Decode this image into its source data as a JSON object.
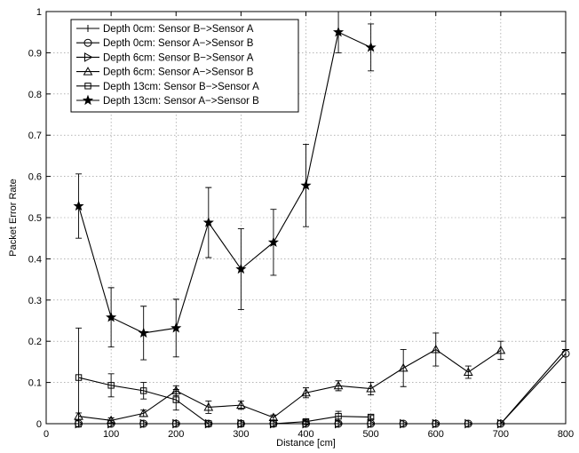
{
  "chart_data": {
    "type": "line",
    "title": "",
    "xlabel": "Distance [cm]",
    "ylabel": "Packet Error Rate",
    "xlim": [
      0,
      800
    ],
    "ylim": [
      0,
      1
    ],
    "x_ticks": [
      0,
      100,
      200,
      300,
      400,
      500,
      600,
      700,
      800
    ],
    "y_ticks": [
      0,
      0.1,
      0.2,
      0.3,
      0.4,
      0.5,
      0.6,
      0.7,
      0.8,
      0.9,
      1
    ],
    "grid": true,
    "legend_position": "top-left",
    "series": [
      {
        "name": "Depth 0cm: Sensor B−>Sensor A",
        "marker": "plus",
        "points": [
          {
            "x": 50,
            "y": 0.0
          },
          {
            "x": 100,
            "y": 0.0
          },
          {
            "x": 150,
            "y": 0.0
          },
          {
            "x": 200,
            "y": 0.0
          },
          {
            "x": 250,
            "y": 0.0
          },
          {
            "x": 300,
            "y": 0.0
          },
          {
            "x": 350,
            "y": 0.0
          },
          {
            "x": 400,
            "y": 0.0
          },
          {
            "x": 450,
            "y": 0.0
          },
          {
            "x": 500,
            "y": 0.0
          },
          {
            "x": 550,
            "y": 0.0
          },
          {
            "x": 600,
            "y": 0.0
          },
          {
            "x": 650,
            "y": 0.0
          },
          {
            "x": 700,
            "y": 0.0
          },
          {
            "x": 800,
            "y": 0.18
          }
        ]
      },
      {
        "name": "Depth 0cm: Sensor A−>Sensor B",
        "marker": "circle",
        "points": [
          {
            "x": 50,
            "y": 0.0
          },
          {
            "x": 100,
            "y": 0.0
          },
          {
            "x": 150,
            "y": 0.0
          },
          {
            "x": 200,
            "y": 0.0
          },
          {
            "x": 250,
            "y": 0.0
          },
          {
            "x": 300,
            "y": 0.0
          },
          {
            "x": 350,
            "y": 0.0
          },
          {
            "x": 400,
            "y": 0.0
          },
          {
            "x": 450,
            "y": 0.0
          },
          {
            "x": 500,
            "y": 0.0
          },
          {
            "x": 550,
            "y": 0.0
          },
          {
            "x": 600,
            "y": 0.0
          },
          {
            "x": 650,
            "y": 0.0
          },
          {
            "x": 700,
            "y": 0.0
          },
          {
            "x": 800,
            "y": 0.17
          }
        ]
      },
      {
        "name": "Depth 6cm: Sensor B−>Sensor A",
        "marker": "triangle-right",
        "points": [
          {
            "x": 50,
            "y": 0.0
          },
          {
            "x": 100,
            "y": 0.0
          },
          {
            "x": 150,
            "y": 0.0
          },
          {
            "x": 200,
            "y": 0.0
          },
          {
            "x": 250,
            "y": 0.0
          },
          {
            "x": 300,
            "y": 0.0
          },
          {
            "x": 350,
            "y": 0.0
          },
          {
            "x": 400,
            "y": 0.0
          },
          {
            "x": 450,
            "y": 0.0
          },
          {
            "x": 500,
            "y": 0.0
          },
          {
            "x": 550,
            "y": 0.0
          },
          {
            "x": 600,
            "y": 0.0
          },
          {
            "x": 650,
            "y": 0.0
          },
          {
            "x": 700,
            "y": 0.0
          }
        ]
      },
      {
        "name": "Depth 6cm: Sensor A−>Sensor B",
        "marker": "triangle-up",
        "points": [
          {
            "x": 50,
            "y": 0.018,
            "err": 0.008
          },
          {
            "x": 100,
            "y": 0.008,
            "err": 0.006
          },
          {
            "x": 150,
            "y": 0.025,
            "err": 0.008
          },
          {
            "x": 200,
            "y": 0.08,
            "err": 0.012
          },
          {
            "x": 250,
            "y": 0.04,
            "err": 0.015
          },
          {
            "x": 300,
            "y": 0.045,
            "err": 0.01
          },
          {
            "x": 350,
            "y": 0.015,
            "err": 0.006
          },
          {
            "x": 400,
            "y": 0.075,
            "err": 0.012
          },
          {
            "x": 450,
            "y": 0.092,
            "err": 0.012
          },
          {
            "x": 500,
            "y": 0.085,
            "err": 0.015
          },
          {
            "x": 550,
            "y": 0.135,
            "err": 0.045
          },
          {
            "x": 600,
            "y": 0.18,
            "err": 0.04
          },
          {
            "x": 650,
            "y": 0.125,
            "err": 0.015
          },
          {
            "x": 700,
            "y": 0.178,
            "err": 0.022
          }
        ]
      },
      {
        "name": "Depth 13cm: Sensor B−>Sensor A",
        "marker": "square",
        "points": [
          {
            "x": 50,
            "y": 0.112,
            "err": 0.12
          },
          {
            "x": 100,
            "y": 0.093,
            "err": 0.028
          },
          {
            "x": 150,
            "y": 0.08,
            "err": 0.02
          },
          {
            "x": 200,
            "y": 0.058,
            "err": 0.025
          },
          {
            "x": 250,
            "y": 0.0
          },
          {
            "x": 300,
            "y": 0.0
          },
          {
            "x": 350,
            "y": 0.0
          },
          {
            "x": 400,
            "y": 0.005,
            "err": 0.005
          },
          {
            "x": 450,
            "y": 0.018,
            "err": 0.012
          },
          {
            "x": 500,
            "y": 0.016,
            "err": 0.004
          }
        ]
      },
      {
        "name": "Depth 13cm: Sensor A−>Sensor B",
        "marker": "star",
        "points": [
          {
            "x": 50,
            "y": 0.528,
            "err": 0.078
          },
          {
            "x": 100,
            "y": 0.258,
            "err": 0.072
          },
          {
            "x": 150,
            "y": 0.22,
            "err": 0.065
          },
          {
            "x": 200,
            "y": 0.232,
            "err": 0.07
          },
          {
            "x": 250,
            "y": 0.488,
            "err": 0.085
          },
          {
            "x": 300,
            "y": 0.375,
            "err": 0.098
          },
          {
            "x": 350,
            "y": 0.44,
            "err": 0.08
          },
          {
            "x": 400,
            "y": 0.578,
            "err": 0.1
          },
          {
            "x": 450,
            "y": 0.95,
            "err": 0.05
          },
          {
            "x": 500,
            "y": 0.913,
            "err": 0.057
          }
        ]
      }
    ]
  }
}
